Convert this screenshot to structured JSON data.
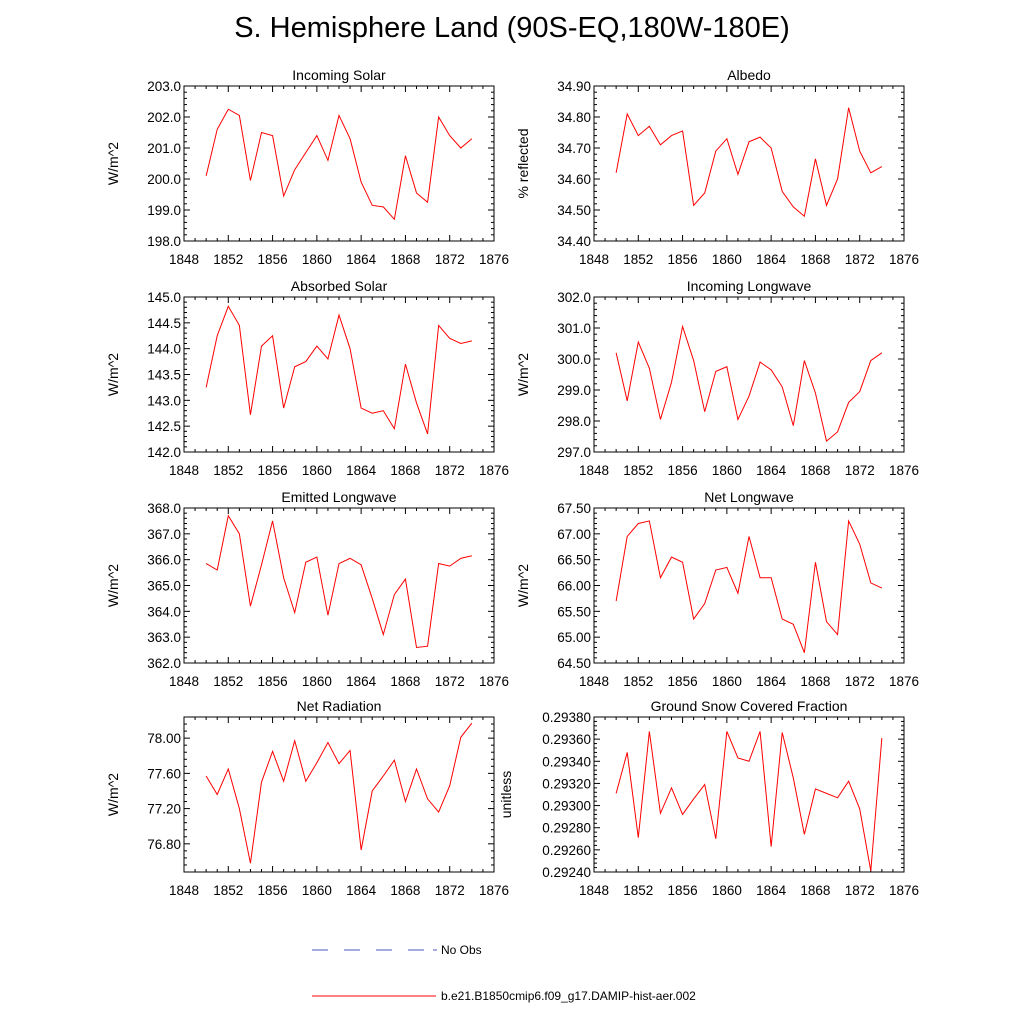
{
  "title": "S. Hemisphere Land (90S-EQ,180W-180E)",
  "colors": {
    "model": "#ff0000",
    "obs": "#4d55c7",
    "axis": "#000000"
  },
  "legend": {
    "obs_label": "No Obs",
    "model_label": "b.e21.B1850cmip6.f09_g17.DAMIP-hist-aer.002"
  },
  "chart_data": [
    {
      "type": "line",
      "title": "Incoming Solar",
      "xlabel": "",
      "ylabel": "W/m^2",
      "xlim": [
        1848,
        1876
      ],
      "ylim": [
        198.0,
        203.0
      ],
      "x_ticks": [
        "1848",
        "1852",
        "1856",
        "1860",
        "1864",
        "1868",
        "1872",
        "1876"
      ],
      "y_ticks": [
        "198.0",
        "199.0",
        "200.0",
        "201.0",
        "202.0",
        "203.0"
      ],
      "x": [
        1850,
        1851,
        1852,
        1853,
        1854,
        1855,
        1856,
        1857,
        1858,
        1859,
        1860,
        1861,
        1862,
        1863,
        1864,
        1865,
        1866,
        1867,
        1868,
        1869,
        1870,
        1871,
        1872,
        1873,
        1874
      ],
      "series": [
        {
          "values": [
            200.1,
            201.6,
            202.25,
            202.05,
            199.95,
            201.5,
            201.4,
            199.45,
            200.3,
            200.85,
            201.4,
            200.6,
            202.05,
            201.3,
            199.9,
            199.15,
            199.1,
            198.7,
            200.75,
            199.55,
            199.25,
            202.0,
            201.4,
            201.0,
            201.3
          ]
        }
      ]
    },
    {
      "type": "line",
      "title": "Albedo",
      "xlabel": "",
      "ylabel": "% reflected",
      "xlim": [
        1848,
        1876
      ],
      "ylim": [
        34.4,
        34.9
      ],
      "x_ticks": [
        "1848",
        "1852",
        "1856",
        "1860",
        "1864",
        "1868",
        "1872",
        "1876"
      ],
      "y_ticks": [
        "34.40",
        "34.50",
        "34.60",
        "34.70",
        "34.80",
        "34.90"
      ],
      "x": [
        1850,
        1851,
        1852,
        1853,
        1854,
        1855,
        1856,
        1857,
        1858,
        1859,
        1860,
        1861,
        1862,
        1863,
        1864,
        1865,
        1866,
        1867,
        1868,
        1869,
        1870,
        1871,
        1872,
        1873,
        1874
      ],
      "series": [
        {
          "values": [
            34.62,
            34.81,
            34.74,
            34.77,
            34.71,
            34.74,
            34.755,
            34.515,
            34.555,
            34.69,
            34.73,
            34.615,
            34.72,
            34.735,
            34.7,
            34.56,
            34.51,
            34.48,
            34.665,
            34.515,
            34.6,
            34.83,
            34.69,
            34.62,
            34.64
          ]
        }
      ]
    },
    {
      "type": "line",
      "title": "Absorbed Solar",
      "xlabel": "",
      "ylabel": "W/m^2",
      "xlim": [
        1848,
        1876
      ],
      "ylim": [
        142.0,
        145.0
      ],
      "x_ticks": [
        "1848",
        "1852",
        "1856",
        "1860",
        "1864",
        "1868",
        "1872",
        "1876"
      ],
      "y_ticks": [
        "142.0",
        "142.5",
        "143.0",
        "143.5",
        "144.0",
        "144.5",
        "145.0"
      ],
      "x": [
        1850,
        1851,
        1852,
        1853,
        1854,
        1855,
        1856,
        1857,
        1858,
        1859,
        1860,
        1861,
        1862,
        1863,
        1864,
        1865,
        1866,
        1867,
        1868,
        1869,
        1870,
        1871,
        1872,
        1873,
        1874
      ],
      "series": [
        {
          "values": [
            143.25,
            144.25,
            144.82,
            144.45,
            142.72,
            144.05,
            144.25,
            142.85,
            143.65,
            143.75,
            144.05,
            143.8,
            144.65,
            144.0,
            142.85,
            142.75,
            142.8,
            142.45,
            143.7,
            142.95,
            142.35,
            144.45,
            144.2,
            144.1,
            144.15
          ]
        }
      ]
    },
    {
      "type": "line",
      "title": "Incoming Longwave",
      "xlabel": "",
      "ylabel": "W/m^2",
      "xlim": [
        1848,
        1876
      ],
      "ylim": [
        297.0,
        302.0
      ],
      "x_ticks": [
        "1848",
        "1852",
        "1856",
        "1860",
        "1864",
        "1868",
        "1872",
        "1876"
      ],
      "y_ticks": [
        "297.0",
        "298.0",
        "299.0",
        "300.0",
        "301.0",
        "302.0"
      ],
      "x": [
        1850,
        1851,
        1852,
        1853,
        1854,
        1855,
        1856,
        1857,
        1858,
        1859,
        1860,
        1861,
        1862,
        1863,
        1864,
        1865,
        1866,
        1867,
        1868,
        1869,
        1870,
        1871,
        1872,
        1873,
        1874
      ],
      "series": [
        {
          "values": [
            300.2,
            298.65,
            300.55,
            299.7,
            298.05,
            299.25,
            301.05,
            299.95,
            298.3,
            299.6,
            299.75,
            298.05,
            298.8,
            299.9,
            299.65,
            299.1,
            297.85,
            299.95,
            298.9,
            297.35,
            297.65,
            298.6,
            298.95,
            299.95,
            300.2
          ]
        }
      ]
    },
    {
      "type": "line",
      "title": "Emitted Longwave",
      "xlabel": "",
      "ylabel": "W/m^2",
      "xlim": [
        1848,
        1876
      ],
      "ylim": [
        362.0,
        368.0
      ],
      "x_ticks": [
        "1848",
        "1852",
        "1856",
        "1860",
        "1864",
        "1868",
        "1872",
        "1876"
      ],
      "y_ticks": [
        "362.0",
        "363.0",
        "364.0",
        "365.0",
        "366.0",
        "367.0",
        "368.0"
      ],
      "x": [
        1850,
        1851,
        1852,
        1853,
        1854,
        1855,
        1856,
        1857,
        1858,
        1859,
        1860,
        1861,
        1862,
        1863,
        1864,
        1865,
        1866,
        1867,
        1868,
        1869,
        1870,
        1871,
        1872,
        1873,
        1874
      ],
      "series": [
        {
          "values": [
            365.85,
            365.6,
            367.7,
            367.0,
            364.2,
            365.8,
            367.5,
            365.3,
            363.95,
            365.9,
            366.1,
            363.85,
            365.85,
            366.05,
            365.8,
            364.5,
            363.1,
            364.65,
            365.25,
            362.6,
            362.65,
            365.85,
            365.75,
            366.05,
            366.15
          ]
        }
      ]
    },
    {
      "type": "line",
      "title": "Net Longwave",
      "xlabel": "",
      "ylabel": "W/m^2",
      "xlim": [
        1848,
        1876
      ],
      "ylim": [
        64.5,
        67.5
      ],
      "x_ticks": [
        "1848",
        "1852",
        "1856",
        "1860",
        "1864",
        "1868",
        "1872",
        "1876"
      ],
      "y_ticks": [
        "64.50",
        "65.00",
        "65.50",
        "66.00",
        "66.50",
        "67.00",
        "67.50"
      ],
      "x": [
        1850,
        1851,
        1852,
        1853,
        1854,
        1855,
        1856,
        1857,
        1858,
        1859,
        1860,
        1861,
        1862,
        1863,
        1864,
        1865,
        1866,
        1867,
        1868,
        1869,
        1870,
        1871,
        1872,
        1873,
        1874
      ],
      "series": [
        {
          "values": [
            65.7,
            66.95,
            67.2,
            67.25,
            66.15,
            66.55,
            66.45,
            65.35,
            65.65,
            66.3,
            66.35,
            65.85,
            66.95,
            66.15,
            66.15,
            65.35,
            65.25,
            64.7,
            66.45,
            65.3,
            65.05,
            67.25,
            66.8,
            66.05,
            65.95
          ]
        }
      ]
    },
    {
      "type": "line",
      "title": "Net Radiation",
      "xlabel": "",
      "ylabel": "W/m^2",
      "xlim": [
        1848,
        1876
      ],
      "ylim": [
        76.48,
        78.24
      ],
      "x_ticks": [
        "1848",
        "1852",
        "1856",
        "1860",
        "1864",
        "1868",
        "1872",
        "1876"
      ],
      "y_ticks": [
        "76.80",
        "77.20",
        "77.60",
        "78.00"
      ],
      "x": [
        1850,
        1851,
        1852,
        1853,
        1854,
        1855,
        1856,
        1857,
        1858,
        1859,
        1860,
        1861,
        1862,
        1863,
        1864,
        1865,
        1866,
        1867,
        1868,
        1869,
        1870,
        1871,
        1872,
        1873,
        1874
      ],
      "series": [
        {
          "values": [
            77.57,
            77.36,
            77.65,
            77.2,
            76.58,
            77.5,
            77.85,
            77.51,
            77.97,
            77.51,
            77.72,
            77.95,
            77.71,
            77.86,
            76.73,
            77.4,
            77.57,
            77.75,
            77.28,
            77.65,
            77.31,
            77.16,
            77.46,
            78.01,
            78.17
          ]
        }
      ]
    },
    {
      "type": "line",
      "title": "Ground Snow Covered Fraction",
      "xlabel": "",
      "ylabel": "unitless",
      "xlim": [
        1848,
        1876
      ],
      "ylim": [
        0.2924,
        0.2938
      ],
      "x_ticks": [
        "1848",
        "1852",
        "1856",
        "1860",
        "1864",
        "1868",
        "1872",
        "1876"
      ],
      "y_ticks": [
        "0.29240",
        "0.29260",
        "0.29280",
        "0.29300",
        "0.29320",
        "0.29340",
        "0.29360",
        "0.29380"
      ],
      "x": [
        1850,
        1851,
        1852,
        1853,
        1854,
        1855,
        1856,
        1857,
        1858,
        1859,
        1860,
        1861,
        1862,
        1863,
        1864,
        1865,
        1866,
        1867,
        1868,
        1869,
        1870,
        1871,
        1872,
        1873,
        1874
      ],
      "series": [
        {
          "values": [
            0.29311,
            0.29348,
            0.29271,
            0.29367,
            0.29293,
            0.29316,
            0.29292,
            0.29306,
            0.29319,
            0.2927,
            0.29367,
            0.29343,
            0.2934,
            0.29367,
            0.29263,
            0.29366,
            0.29325,
            0.29274,
            0.29315,
            0.29311,
            0.29307,
            0.29322,
            0.29297,
            0.29241,
            0.29361
          ]
        }
      ]
    }
  ]
}
